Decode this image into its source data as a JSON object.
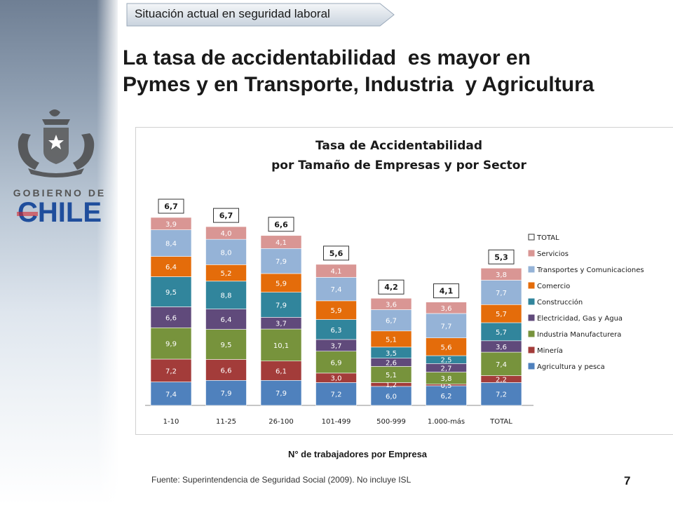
{
  "header": {
    "tab_label": "Situación actual en seguridad laboral"
  },
  "title_line1": "La tasa de accidentabilidad  es mayor en",
  "title_line2": "Pymes y en Transporte, Industria  y Agricultura",
  "logo": {
    "line1": "GOBIERNO DE",
    "line2": "CHILE"
  },
  "x_caption": "N° de trabajadores por Empresa",
  "source": "Fuente: Superintendencia de Seguridad Social (2009).  No incluye ISL",
  "page_number": "7",
  "colors": {
    "Agricultura y pesca": "#4f81bd",
    "Minería": "#a33c3a",
    "Industria Manufacturera": "#77933c",
    "Electricidad, Gas y Agua": "#604a7b",
    "Construcción": "#31859c",
    "Comercio": "#e46c0a",
    "Transportes y Comunicaciones": "#95b3d7",
    "Servicios": "#d99694"
  },
  "chart_data": {
    "type": "bar",
    "stacked": true,
    "title": "Tasa de Accidentabilidad",
    "subtitle": "por Tamaño de Empresas y por Sector",
    "xlabel": "N° de trabajadores por Empresa",
    "categories": [
      "1-10",
      "11-25",
      "26-100",
      "101-499",
      "500-999",
      "1.000-más",
      "TOTAL"
    ],
    "series": [
      {
        "name": "Agricultura y pesca",
        "values": [
          7.4,
          7.9,
          7.9,
          7.2,
          6.0,
          6.2,
          7.2
        ],
        "labels": [
          "7,4",
          "7,9",
          "7,9",
          "7,2",
          "6,0",
          "6,2",
          "7,2"
        ]
      },
      {
        "name": "Minería",
        "values": [
          7.2,
          6.6,
          6.1,
          3.0,
          1.2,
          0.5,
          2.2
        ],
        "labels": [
          "7,2",
          "6,6",
          "6,1",
          "3,0",
          "1,2",
          "0,5",
          "2,2"
        ]
      },
      {
        "name": "Industria Manufacturera",
        "values": [
          9.9,
          9.5,
          10.1,
          6.9,
          5.1,
          3.8,
          7.4
        ],
        "labels": [
          "9,9",
          "9,5",
          "10,1",
          "6,9",
          "5,1",
          "3,8",
          "7,4"
        ]
      },
      {
        "name": "Electricidad, Gas y Agua",
        "values": [
          6.6,
          6.4,
          3.7,
          3.7,
          2.6,
          2.7,
          3.6
        ],
        "labels": [
          "6,6",
          "6,4",
          "3,7",
          "3,7",
          "2,6",
          "2,7",
          "3,6"
        ]
      },
      {
        "name": "Construcción",
        "values": [
          9.5,
          8.8,
          7.9,
          6.3,
          3.5,
          2.5,
          5.7
        ],
        "labels": [
          "9,5",
          "8,8",
          "7,9",
          "6,3",
          "3,5",
          "2,5",
          "5,7"
        ]
      },
      {
        "name": "Comercio",
        "values": [
          6.4,
          5.2,
          5.9,
          5.9,
          5.1,
          5.6,
          5.7
        ],
        "labels": [
          "6,4",
          "5,2",
          "5,9",
          "5,9",
          "5,1",
          "5,6",
          "5,7"
        ]
      },
      {
        "name": "Transportes y Comunicaciones",
        "values": [
          8.4,
          8.0,
          7.9,
          7.4,
          6.7,
          7.7,
          7.7
        ],
        "labels": [
          "8,4",
          "8,0",
          "7,9",
          "7,4",
          "6,7",
          "7,7",
          "7,7"
        ]
      },
      {
        "name": "Servicios",
        "values": [
          3.9,
          4.0,
          4.1,
          4.1,
          3.6,
          3.6,
          3.8
        ],
        "labels": [
          "3,9",
          "4,0",
          "4,1",
          "4,1",
          "3,6",
          "3,6",
          "3,8"
        ]
      }
    ],
    "totals": {
      "name": "TOTAL",
      "values": [
        6.7,
        6.7,
        6.6,
        5.6,
        4.2,
        4.1,
        5.3
      ],
      "labels": [
        "6,7",
        "6,7",
        "6,6",
        "5,6",
        "4,2",
        "4,1",
        "5,3"
      ]
    },
    "legend": [
      "TOTAL",
      "Servicios",
      "Transportes y Comunicaciones",
      "Comercio",
      "Construcción",
      "Electricidad, Gas y Agua",
      "Industria Manufacturera",
      "Minería",
      "Agricultura y pesca"
    ],
    "legend_position": "right",
    "grid": false
  }
}
